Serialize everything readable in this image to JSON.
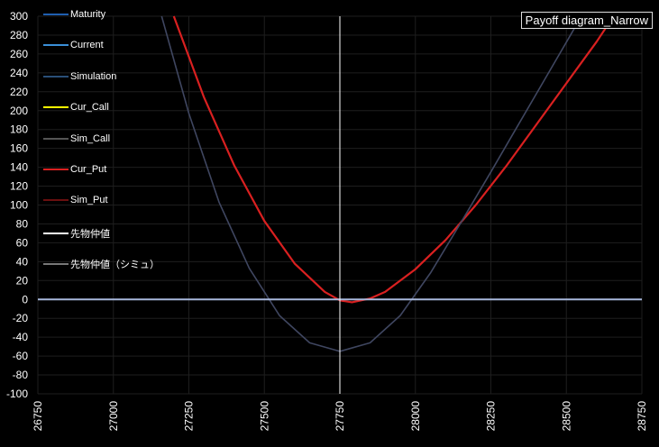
{
  "chart_data": {
    "type": "line",
    "title": "Payoff diagram_Narrow",
    "xlim": [
      26750,
      28750
    ],
    "ylim": [
      -100,
      300
    ],
    "x_ticks": [
      "26750",
      "27000",
      "27250",
      "27500",
      "27750",
      "28000",
      "28250",
      "28500",
      "28750"
    ],
    "y_ticks": [
      "300",
      "280",
      "260",
      "240",
      "220",
      "200",
      "180",
      "160",
      "140",
      "120",
      "100",
      "80",
      "60",
      "40",
      "20",
      "0",
      "-20",
      "-40",
      "-60",
      "-80",
      "-100"
    ],
    "grid": true,
    "legend_position": "top-left",
    "legend": [
      {
        "label": "Maturity",
        "color": "#1f5fb0"
      },
      {
        "label": "Current",
        "color": "#3a8fd8"
      },
      {
        "label": "Simulation",
        "color": "#2a4f78"
      },
      {
        "label": "Cur_Call",
        "color": "#ffff00"
      },
      {
        "label": "Sim_Call",
        "color": "#555555"
      },
      {
        "label": "Cur_Put",
        "color": "#d92020"
      },
      {
        "label": "Sim_Put",
        "color": "#6a0f0f"
      },
      {
        "label": "先物仲値",
        "color": "#ffffff"
      },
      {
        "label": "先物仲値（シミュ）",
        "color": "#777777"
      }
    ],
    "series": [
      {
        "label": "Cur_Put",
        "color": "#d92020",
        "x": [
          27200,
          27300,
          27400,
          27500,
          27600,
          27700,
          27750,
          27790,
          27850,
          27900,
          28000,
          28100,
          28200,
          28300,
          28400,
          28500,
          28600,
          28650
        ],
        "y": [
          300,
          214,
          142,
          83,
          38,
          8,
          -1,
          -3,
          1,
          8,
          32,
          63,
          100,
          141,
          185,
          229,
          273,
          297
        ]
      },
      {
        "label": "Simulation",
        "color": "#3f4660",
        "x": [
          27160,
          27250,
          27350,
          27450,
          27550,
          27650,
          27750,
          27850,
          27950,
          28050,
          28150,
          28250,
          28350,
          28450,
          28550,
          28620
        ],
        "y": [
          300,
          197,
          103,
          33,
          -17,
          -46,
          -55,
          -46,
          -17,
          28,
          81,
          135,
          190,
          245,
          300,
          300
        ]
      },
      {
        "label": "Zero line",
        "color": "#a8b8dc",
        "x": [
          26750,
          28750
        ],
        "y": [
          0,
          0
        ]
      }
    ],
    "markers": [
      {
        "label": "先物仲値",
        "x": 27750,
        "color": "#ffffff"
      }
    ]
  }
}
